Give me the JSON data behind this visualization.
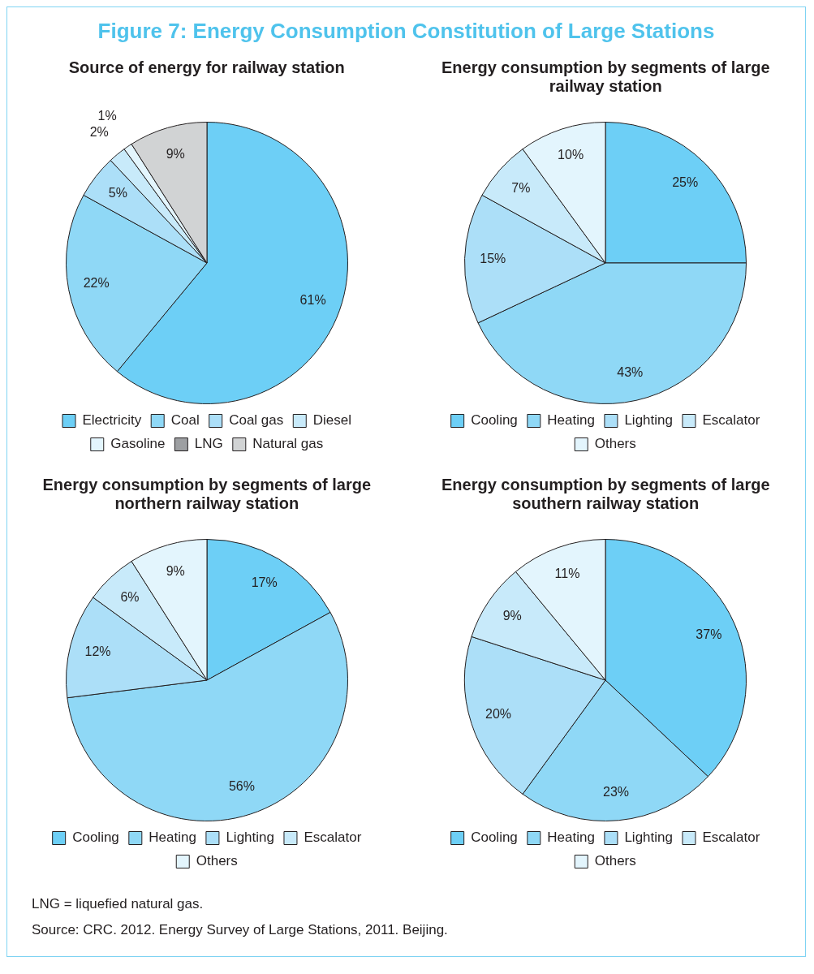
{
  "chart_data": [
    {
      "type": "pie",
      "title": "Figure 7: Energy Consumption Constitution of Large Stations",
      "subtitle": "Source of energy for railway  station",
      "categories": [
        "Electricity",
        "Coal",
        "Coal gas",
        "Diesel",
        "Gasoline",
        "LNG",
        "Natural gas"
      ],
      "values": [
        61,
        22,
        5,
        2,
        1,
        0,
        9
      ],
      "value_labels": [
        "61%",
        "22%",
        "5%",
        "2%",
        "1%",
        null,
        "9%"
      ],
      "colors": [
        "#6dcff6",
        "#8fd8f6",
        "#acdff8",
        "#c8eafa",
        "#e3f5fd",
        "#9d9fa2",
        "#d1d3d4"
      ],
      "legend": "bottom"
    },
    {
      "type": "pie",
      "subtitle": "Energy consumption by segments of large railway station",
      "categories": [
        "Cooling",
        "Heating",
        "Lighting",
        "Escalator",
        "Others"
      ],
      "values": [
        25,
        43,
        15,
        7,
        10
      ],
      "value_labels": [
        "25%",
        "43%",
        "15%",
        "7%",
        "10%"
      ],
      "colors": [
        "#6dcff6",
        "#8fd8f6",
        "#acdff8",
        "#c8eafa",
        "#e3f5fd"
      ],
      "legend": "bottom"
    },
    {
      "type": "pie",
      "subtitle": "Energy consumption by segments of large northern railway station",
      "categories": [
        "Cooling",
        "Heating",
        "Lighting",
        "Escalator",
        "Others"
      ],
      "values": [
        17,
        56,
        12,
        6,
        9
      ],
      "value_labels": [
        "17%",
        "56%",
        "12%",
        "6%",
        "9%"
      ],
      "colors": [
        "#6dcff6",
        "#8fd8f6",
        "#acdff8",
        "#c8eafa",
        "#e3f5fd"
      ],
      "legend": "bottom"
    },
    {
      "type": "pie",
      "subtitle": "Energy consumption by segments of large southern railway station",
      "categories": [
        "Cooling",
        "Heating",
        "Lighting",
        "Escalator",
        "Others"
      ],
      "values": [
        37,
        23,
        20,
        9,
        11
      ],
      "value_labels": [
        "37%",
        "23%",
        "20%",
        "9%",
        "11%"
      ],
      "colors": [
        "#6dcff6",
        "#8fd8f6",
        "#acdff8",
        "#c8eafa",
        "#e3f5fd"
      ],
      "legend": "bottom",
      "annotations": [
        "LNG = liquefied natural gas.",
        "Source: CRC. 2012. Energy Survey of Large Stations, 2011. Beijing."
      ]
    }
  ]
}
